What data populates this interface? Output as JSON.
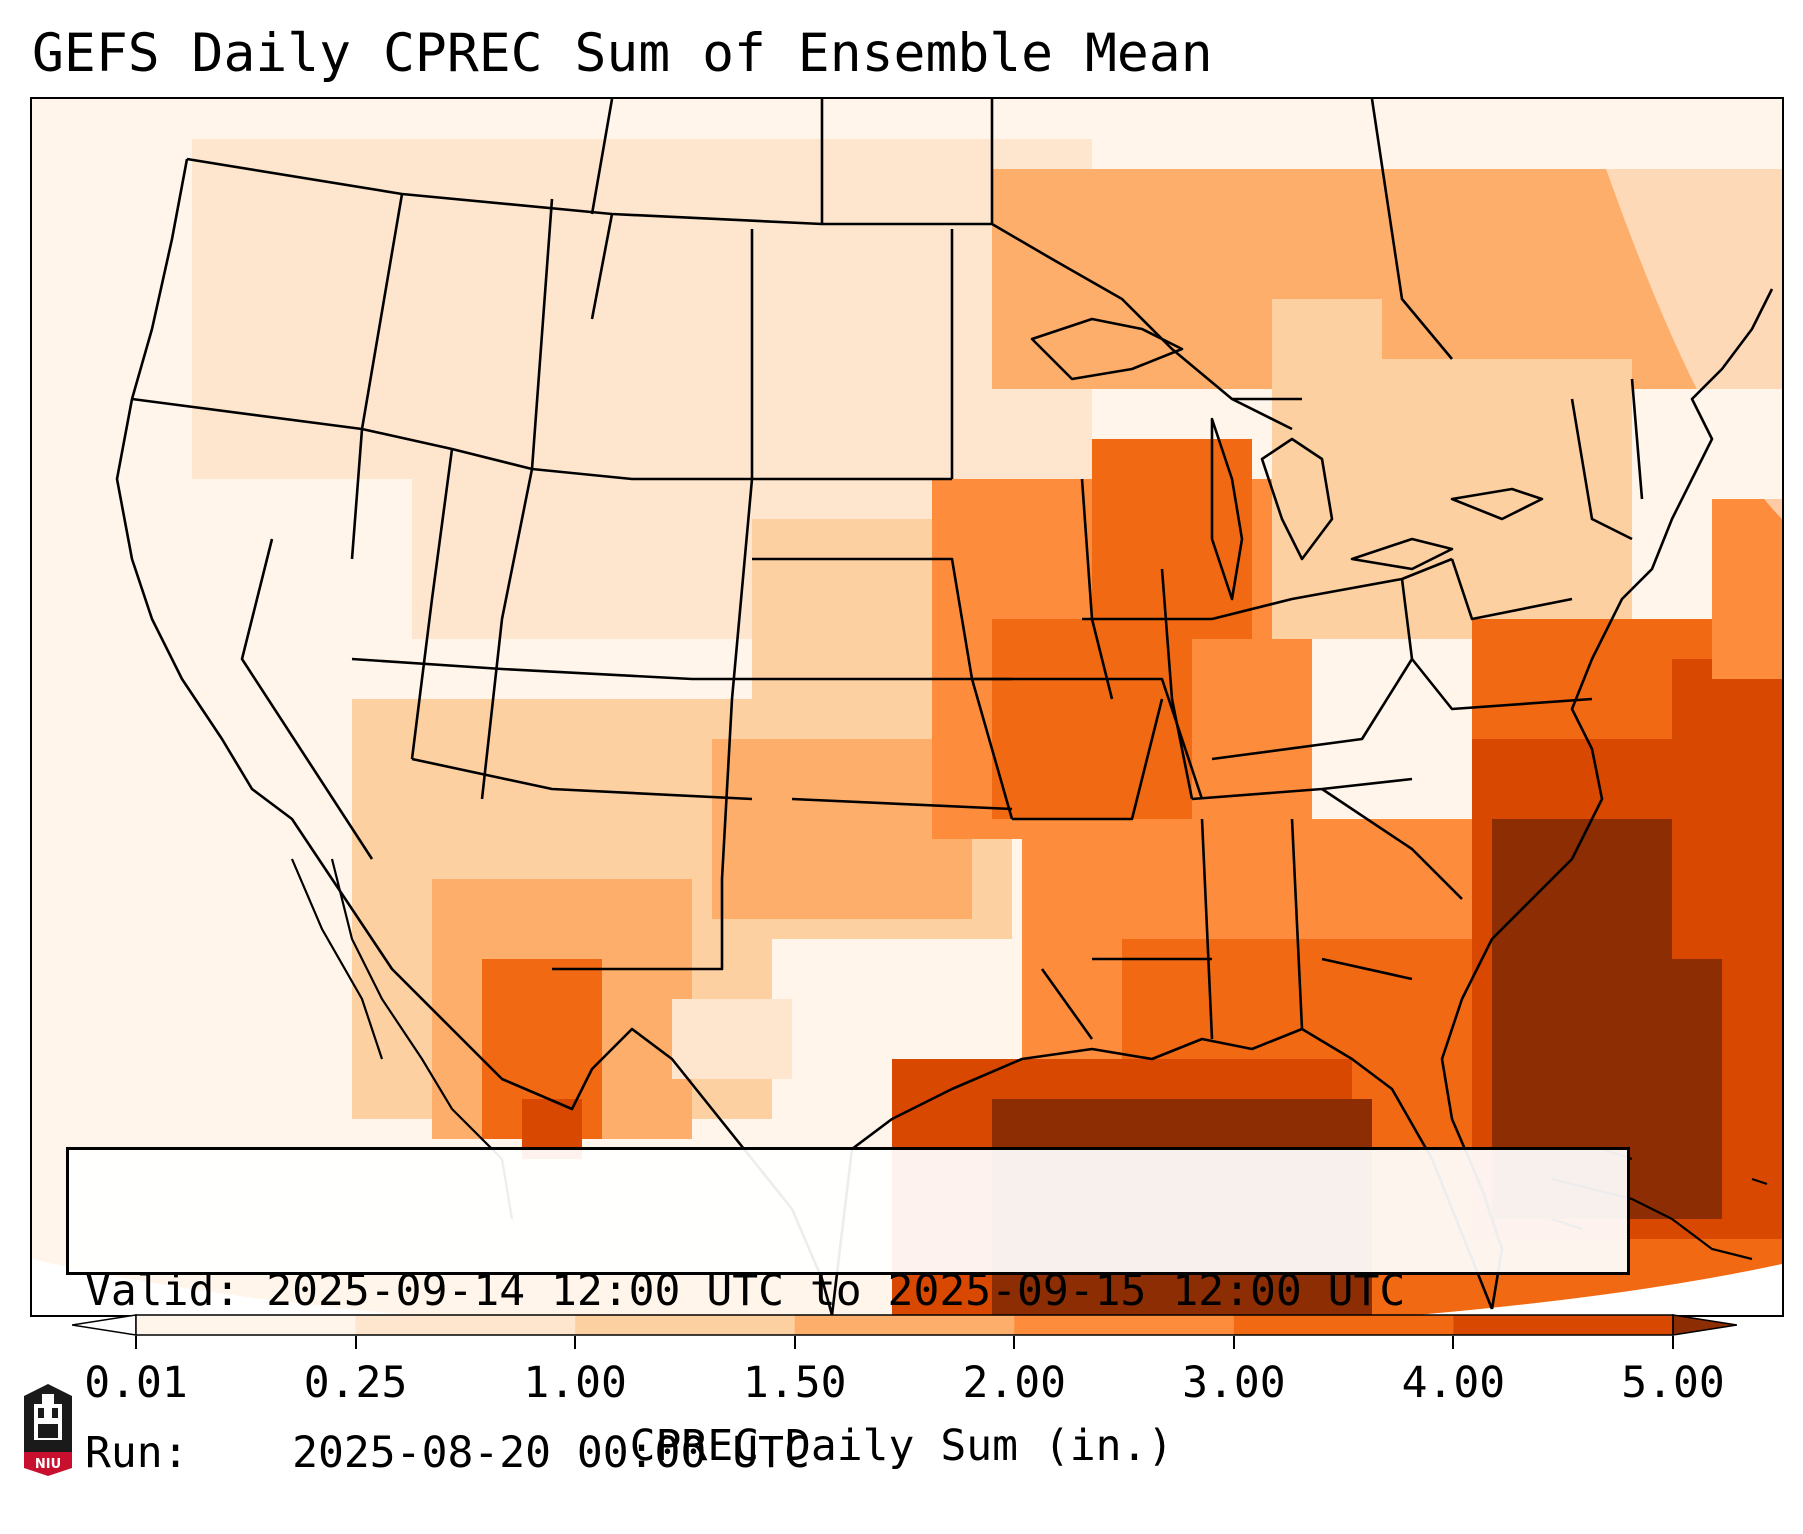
{
  "title": "GEFS Daily CPREC Sum of Ensemble Mean",
  "info": {
    "valid_label": "Valid:",
    "valid_value": "2025-09-14 12:00 UTC to 2025-09-15 12:00 UTC",
    "run_label": "Run:",
    "run_value": "2025-08-20 00:00 UTC"
  },
  "colorbar": {
    "label": "CPREC Daily Sum (in.)",
    "ticks": [
      "0.01",
      "0.25",
      "1.00",
      "1.50",
      "2.00",
      "3.00",
      "4.00",
      "5.00"
    ],
    "colors": [
      "#fff5eb",
      "#fee6ce",
      "#fdd0a2",
      "#fdae6b",
      "#fd8d3c",
      "#f16913",
      "#d94801",
      "#8c2d04"
    ],
    "under_color": "#ffffff",
    "over_color": "#8c2d04",
    "extend": "both"
  },
  "logo": {
    "text": "NIU",
    "color": "#c8102e"
  },
  "map": {
    "region": "Continental United States",
    "projection": "Lambert Conformal",
    "variable": "CPREC",
    "borders": "state and national boundaries"
  }
}
